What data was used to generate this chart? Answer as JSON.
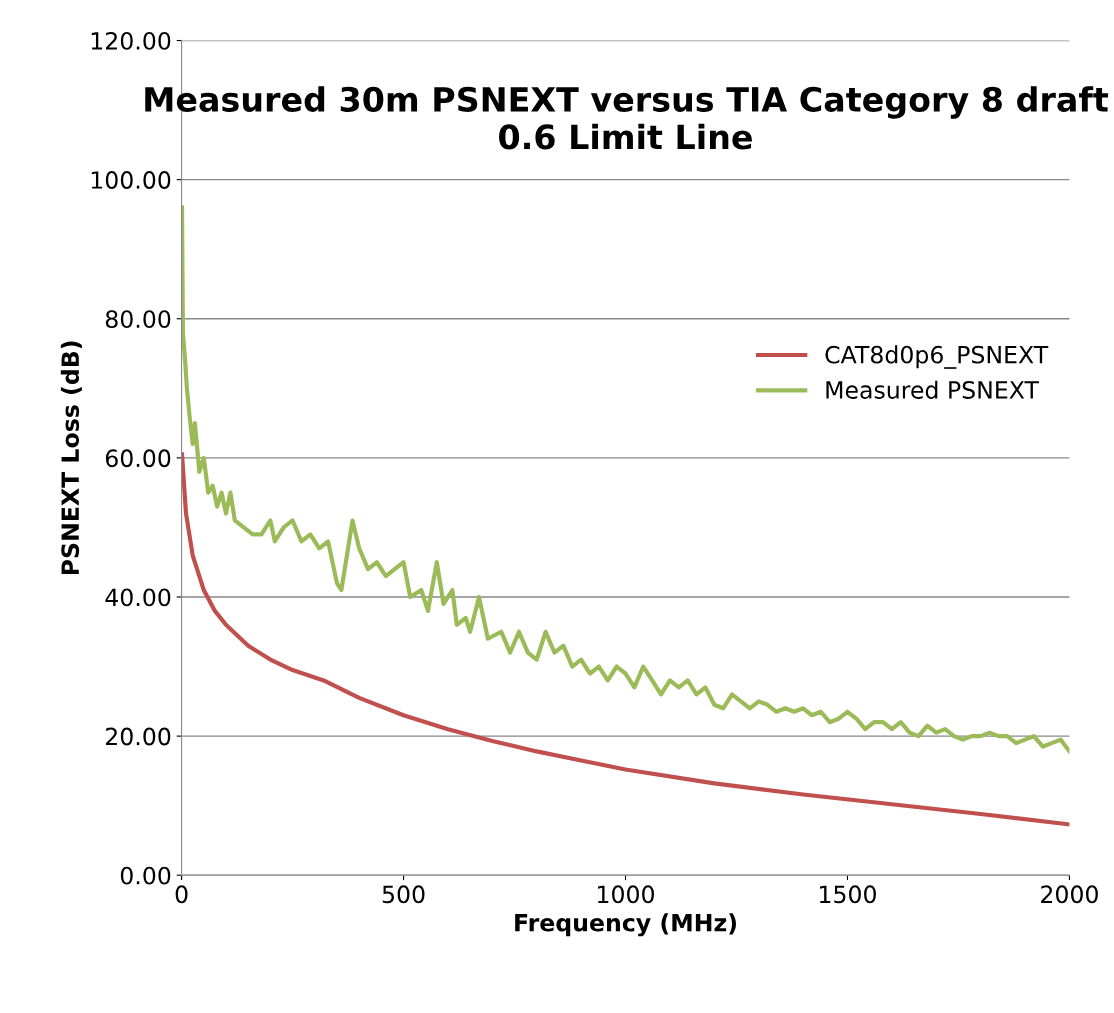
{
  "chart_data": {
    "type": "line",
    "title": "Measured 30m PSNEXT versus TIA Category 8 draft\n0.6 Limit Line",
    "xlabel": "Frequency (MHz)",
    "ylabel": "PSNEXT Loss (dB)",
    "xlim": [
      0,
      2000
    ],
    "xticks": [
      0,
      500,
      1000,
      1500,
      2000
    ],
    "ylim": [
      0,
      120
    ],
    "yticks": [
      {
        "value": 0,
        "label": "0.00"
      },
      {
        "value": 20,
        "label": "20.00"
      },
      {
        "value": 40,
        "label": "40.00"
      },
      {
        "value": 60,
        "label": "60.00"
      },
      {
        "value": 80,
        "label": "80.00"
      },
      {
        "value": 100,
        "label": "100.00"
      },
      {
        "value": 120,
        "label": "120.00"
      }
    ],
    "grid": "y",
    "legend": "right",
    "marker": "none",
    "line_style": "solid",
    "series": [
      {
        "name": "CAT8d0p6_PSNEXT",
        "color": "#c0504d",
        "x": [
          1,
          10,
          25,
          50,
          75,
          100,
          150,
          200,
          250,
          320,
          400,
          500,
          600,
          700,
          800,
          900,
          1000,
          1200,
          1400,
          1600,
          1800,
          2000
        ],
        "values": [
          60.5,
          52,
          46,
          41,
          38,
          36,
          33,
          31,
          29.5,
          28,
          25.5,
          23,
          21,
          19.3,
          17.8,
          16.5,
          15.2,
          13.2,
          11.6,
          10.2,
          8.8,
          7.3
        ]
      },
      {
        "name": "Measured PSNEXT",
        "color": "#9bbb59",
        "x": [
          1,
          3,
          8,
          12,
          18,
          25,
          30,
          40,
          50,
          60,
          70,
          80,
          90,
          100,
          110,
          120,
          140,
          160,
          180,
          200,
          210,
          230,
          250,
          270,
          290,
          310,
          330,
          350,
          360,
          375,
          385,
          400,
          420,
          440,
          460,
          480,
          500,
          515,
          540,
          555,
          575,
          590,
          610,
          620,
          640,
          650,
          670,
          690,
          720,
          740,
          760,
          780,
          800,
          820,
          840,
          860,
          880,
          900,
          920,
          940,
          960,
          980,
          1000,
          1020,
          1040,
          1060,
          1080,
          1100,
          1120,
          1140,
          1160,
          1180,
          1200,
          1220,
          1240,
          1260,
          1280,
          1300,
          1320,
          1340,
          1360,
          1380,
          1400,
          1420,
          1440,
          1460,
          1480,
          1500,
          1520,
          1540,
          1560,
          1580,
          1600,
          1620,
          1640,
          1660,
          1680,
          1700,
          1720,
          1740,
          1760,
          1780,
          1800,
          1820,
          1840,
          1860,
          1880,
          1900,
          1920,
          1940,
          1960,
          1980,
          2000
        ],
        "values": [
          96,
          78,
          74,
          70,
          66,
          62,
          65,
          58,
          60,
          55,
          56,
          53,
          55,
          52,
          55,
          51,
          50,
          49,
          49,
          51,
          48,
          50,
          51,
          48,
          49,
          47,
          48,
          42,
          41,
          47,
          51,
          47,
          44,
          45,
          43,
          44,
          45,
          40,
          41,
          38,
          45,
          39,
          41,
          36,
          37,
          35,
          40,
          34,
          35,
          32,
          35,
          32,
          31,
          35,
          32,
          33,
          30,
          31,
          29,
          30,
          28,
          30,
          29,
          27,
          30,
          28,
          26,
          28,
          27,
          28,
          26,
          27,
          24.5,
          24,
          26,
          25,
          24,
          25,
          24.5,
          23.5,
          24,
          23.5,
          24,
          23,
          23.5,
          22,
          22.5,
          23.5,
          22.5,
          21,
          22,
          22,
          21,
          22,
          20.5,
          20,
          21.5,
          20.5,
          21,
          20,
          19.5,
          20,
          20,
          20.5,
          20,
          20,
          19,
          19.5,
          20,
          18.5,
          19,
          19.5,
          17.8
        ]
      }
    ]
  }
}
